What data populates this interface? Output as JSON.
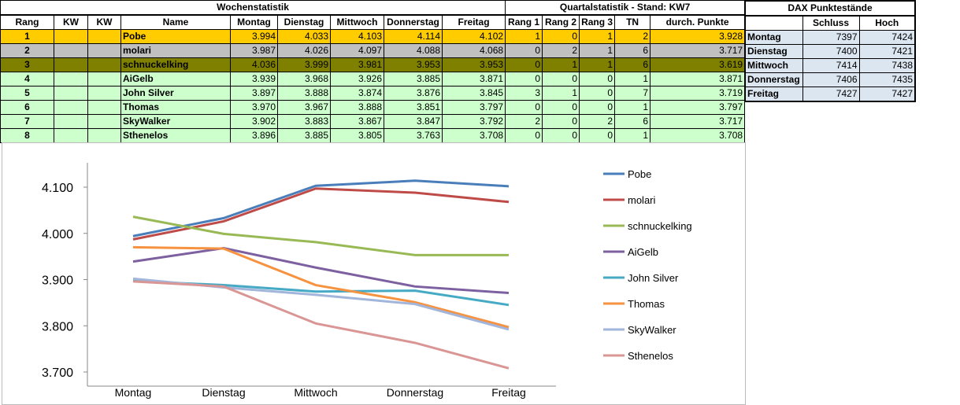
{
  "weekly": {
    "title": "Wochenstatistik",
    "headers": [
      "Rang",
      "KW",
      "KW",
      "Name",
      "Montag",
      "Dienstag",
      "Mittwoch",
      "Donnerstag",
      "Freitag"
    ]
  },
  "quarter": {
    "title": "Quartalstatistik - Stand: KW7",
    "headers": [
      "Rang 1",
      "Rang 2",
      "Rang 3",
      "TN",
      "durch. Punkte"
    ]
  },
  "rows": [
    {
      "rang": "1",
      "name": "Pobe",
      "days": [
        "3.994",
        "4.033",
        "4.103",
        "4.114",
        "4.102"
      ],
      "q": [
        "1",
        "0",
        "1",
        "2",
        "3.928"
      ],
      "color": "#FFCC00"
    },
    {
      "rang": "2",
      "name": "molari",
      "days": [
        "3.987",
        "4.026",
        "4.097",
        "4.088",
        "4.068"
      ],
      "q": [
        "0",
        "2",
        "1",
        "6",
        "3.717"
      ],
      "color": "#C0C0C0"
    },
    {
      "rang": "3",
      "name": "schnuckelking",
      "days": [
        "4.036",
        "3.999",
        "3.981",
        "3.953",
        "3.953"
      ],
      "q": [
        "0",
        "1",
        "1",
        "6",
        "3.619"
      ],
      "color": "#808000"
    },
    {
      "rang": "4",
      "name": "AiGelb",
      "days": [
        "3.939",
        "3.968",
        "3.926",
        "3.885",
        "3.871"
      ],
      "q": [
        "0",
        "0",
        "0",
        "1",
        "3.871"
      ],
      "color": "#CCFFCC"
    },
    {
      "rang": "5",
      "name": "John Silver",
      "days": [
        "3.897",
        "3.888",
        "3.874",
        "3.876",
        "3.845"
      ],
      "q": [
        "3",
        "1",
        "0",
        "7",
        "3.719"
      ],
      "color": "#CCFFCC"
    },
    {
      "rang": "6",
      "name": "Thomas",
      "days": [
        "3.970",
        "3.967",
        "3.888",
        "3.851",
        "3.797"
      ],
      "q": [
        "0",
        "0",
        "0",
        "1",
        "3.797"
      ],
      "color": "#CCFFCC"
    },
    {
      "rang": "7",
      "name": "SkyWalker",
      "days": [
        "3.902",
        "3.883",
        "3.867",
        "3.847",
        "3.792"
      ],
      "q": [
        "2",
        "0",
        "2",
        "6",
        "3.717"
      ],
      "color": "#CCFFCC"
    },
    {
      "rang": "8",
      "name": "Sthenelos",
      "days": [
        "3.896",
        "3.885",
        "3.805",
        "3.763",
        "3.708"
      ],
      "q": [
        "0",
        "0",
        "0",
        "1",
        "3.708"
      ],
      "color": "#CCFFCC"
    }
  ],
  "dax": {
    "title": "DAX Punktestände",
    "headers": [
      "",
      "Schluss",
      "Hoch"
    ],
    "rows": [
      [
        "Montag",
        "7397",
        "7424"
      ],
      [
        "Dienstag",
        "7400",
        "7421"
      ],
      [
        "Mittwoch",
        "7414",
        "7438"
      ],
      [
        "Donnerstag",
        "7406",
        "7435"
      ],
      [
        "Freitag",
        "7427",
        "7427"
      ]
    ],
    "color": "#DCE6F1"
  },
  "chart_data": {
    "type": "line",
    "categories": [
      "Montag",
      "Dienstag",
      "Mittwoch",
      "Donnerstag",
      "Freitag"
    ],
    "ylim": [
      3.7,
      4.15
    ],
    "yticks": [
      "3.700",
      "3.800",
      "3.900",
      "4.000",
      "4.100"
    ],
    "legend": "right",
    "grid": false,
    "series": [
      {
        "name": "Pobe",
        "values": [
          3.994,
          4.033,
          4.103,
          4.114,
          4.102
        ],
        "color": "#4A7EBB"
      },
      {
        "name": "molari",
        "values": [
          3.987,
          4.026,
          4.097,
          4.088,
          4.068
        ],
        "color": "#BE4B48"
      },
      {
        "name": "schnuckelking",
        "values": [
          4.036,
          3.999,
          3.981,
          3.953,
          3.953
        ],
        "color": "#98B954"
      },
      {
        "name": "AiGelb",
        "values": [
          3.939,
          3.968,
          3.926,
          3.885,
          3.871
        ],
        "color": "#7D60A0"
      },
      {
        "name": "John Silver",
        "values": [
          3.897,
          3.888,
          3.874,
          3.876,
          3.845
        ],
        "color": "#46AAC5"
      },
      {
        "name": "Thomas",
        "values": [
          3.97,
          3.967,
          3.888,
          3.851,
          3.797
        ],
        "color": "#F69240"
      },
      {
        "name": "SkyWalker",
        "values": [
          3.902,
          3.883,
          3.867,
          3.847,
          3.792
        ],
        "color": "#A2B5DA"
      },
      {
        "name": "Sthenelos",
        "values": [
          3.896,
          3.885,
          3.805,
          3.763,
          3.708
        ],
        "color": "#D99694"
      }
    ]
  }
}
